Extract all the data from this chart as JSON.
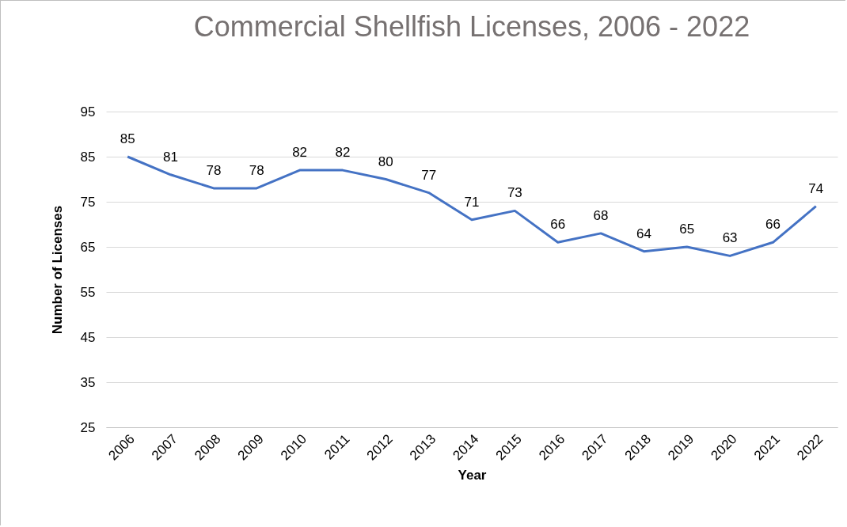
{
  "chart_data": {
    "type": "line",
    "title": "Commercial Shellfish Licenses, 2006 - 2022",
    "xlabel": "Year",
    "ylabel": "Number of Licenses",
    "categories": [
      "2006",
      "2007",
      "2008",
      "2009",
      "2010",
      "2011",
      "2012",
      "2013",
      "2014",
      "2015",
      "2016",
      "2017",
      "2018",
      "2019",
      "2020",
      "2021",
      "2022"
    ],
    "values": [
      85,
      81,
      78,
      78,
      82,
      82,
      80,
      77,
      71,
      73,
      66,
      68,
      64,
      65,
      63,
      66,
      74
    ],
    "color": "#4472c4",
    "ylim": [
      25,
      95
    ],
    "yticks": [
      25,
      35,
      45,
      55,
      65,
      75,
      85,
      95
    ],
    "grid": "y",
    "data_labels": true
  }
}
